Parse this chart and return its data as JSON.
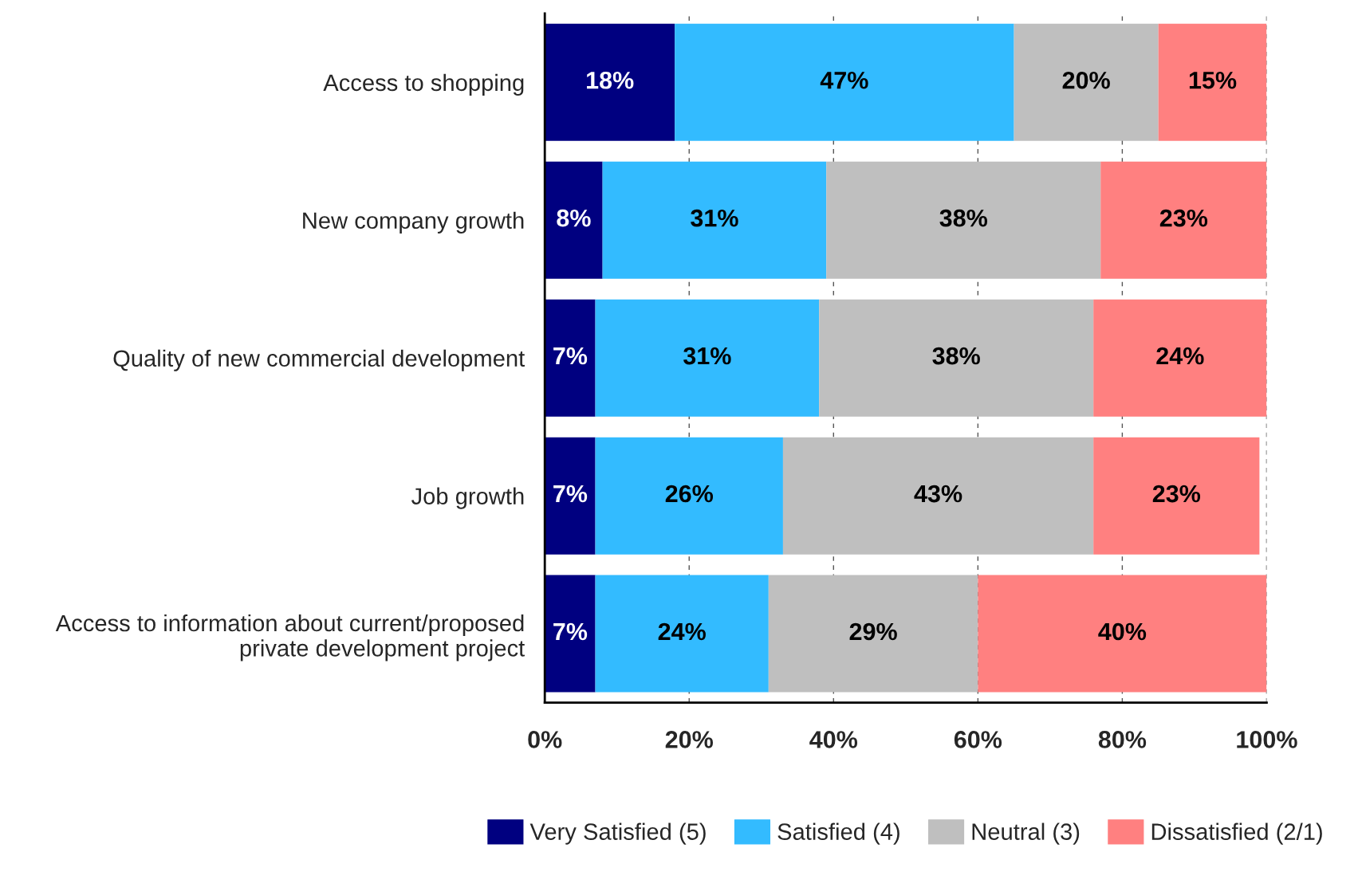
{
  "chart_data": {
    "type": "bar",
    "orientation": "horizontal",
    "stacked": true,
    "categories": [
      "Access to shopping",
      "New company growth",
      "Quality of new commercial development",
      "Job growth",
      "Access to information about current/proposed\nprivate development project"
    ],
    "series": [
      {
        "name": "Very Satisfied (5)",
        "color": "#000080",
        "values": [
          18,
          8,
          7,
          7,
          7
        ],
        "value_labels": [
          "18%",
          "8%",
          "7%",
          "7%",
          "7%"
        ]
      },
      {
        "name": "Satisfied (4)",
        "color": "#33bbff",
        "values": [
          47,
          31,
          31,
          26,
          24
        ],
        "value_labels": [
          "47%",
          "31%",
          "31%",
          "26%",
          "24%"
        ]
      },
      {
        "name": "Neutral (3)",
        "color": "#bfbfbf",
        "values": [
          20,
          38,
          38,
          43,
          29
        ],
        "value_labels": [
          "20%",
          "38%",
          "38%",
          "43%",
          "29%"
        ]
      },
      {
        "name": "Dissatisfied (2/1)",
        "color": "#ff8080",
        "values": [
          15,
          23,
          24,
          23,
          40
        ],
        "value_labels": [
          "15%",
          "23%",
          "24%",
          "23%",
          "40%"
        ]
      }
    ],
    "xlim": [
      0,
      100
    ],
    "xticks": [
      {
        "value": 0,
        "label": "0%"
      },
      {
        "value": 20,
        "label": "20%"
      },
      {
        "value": 40,
        "label": "40%"
      },
      {
        "value": 60,
        "label": "60%"
      },
      {
        "value": 80,
        "label": "80%"
      },
      {
        "value": 100,
        "label": "100%"
      }
    ],
    "grid": "x",
    "legend": "bottom"
  }
}
